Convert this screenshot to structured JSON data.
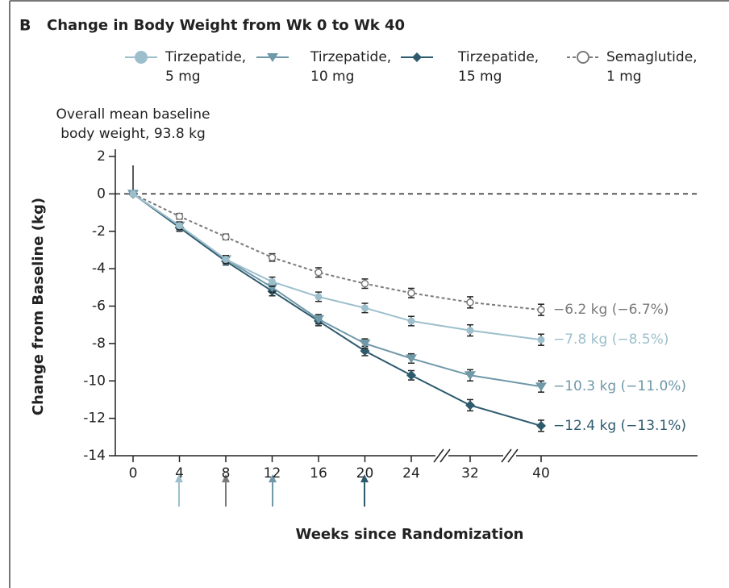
{
  "chart_data": {
    "type": "line",
    "panel": "B",
    "title": "Change in Body Weight from Wk 0 to Wk 40",
    "annotation": "Overall mean baseline body weight, 93.8 kg",
    "xlabel": "Weeks since Randomization",
    "ylabel": "Change from Baseline (kg)",
    "categories": [
      "0",
      "4",
      "8",
      "12",
      "16",
      "20",
      "24",
      "32",
      "40"
    ],
    "ylim": [
      -14,
      2
    ],
    "yticks": [
      -14,
      -12,
      -10,
      -8,
      -6,
      -4,
      -2,
      0,
      2
    ],
    "series": [
      {
        "name": "Tirzepatide, 5 mg",
        "color": "#9dbfcc",
        "marker": "circle",
        "values": [
          0,
          -1.7,
          -3.5,
          -4.7,
          -5.5,
          -6.1,
          -6.8,
          -7.3,
          -7.8
        ],
        "errors": [
          null,
          0.2,
          0.2,
          0.25,
          0.25,
          0.25,
          0.25,
          0.3,
          0.3
        ],
        "value_labels": [
          null,
          null,
          null,
          null,
          null,
          null,
          null,
          null,
          "−7.8 kg (−8.5%)"
        ]
      },
      {
        "name": "Tirzepatide, 10 mg",
        "color": "#6f98a8",
        "marker": "triangle",
        "values": [
          0,
          -1.7,
          -3.5,
          -5.0,
          -6.7,
          -8.0,
          -8.8,
          -9.7,
          -10.3
        ],
        "errors": [
          null,
          0.2,
          0.2,
          0.25,
          0.25,
          0.25,
          0.25,
          0.3,
          0.3
        ],
        "value_labels": [
          null,
          null,
          null,
          null,
          null,
          null,
          null,
          null,
          "−10.3 kg (−11.0%)"
        ]
      },
      {
        "name": "Tirzepatide, 15 mg",
        "color": "#2e5a6e",
        "marker": "diamond",
        "values": [
          0,
          -1.8,
          -3.6,
          -5.2,
          -6.8,
          -8.4,
          -9.7,
          -11.3,
          -12.4
        ],
        "errors": [
          null,
          0.2,
          0.2,
          0.25,
          0.25,
          0.25,
          0.25,
          0.3,
          0.3
        ],
        "value_labels": [
          null,
          null,
          null,
          null,
          null,
          null,
          null,
          null,
          "−12.4 kg (−13.1%)"
        ]
      },
      {
        "name": "Semaglutide, 1 mg",
        "color": "#7a7a7a",
        "marker": "open-circle",
        "dashed": true,
        "values": [
          0,
          -1.2,
          -2.3,
          -3.4,
          -4.2,
          -4.8,
          -5.3,
          -5.8,
          -6.2
        ],
        "errors": [
          null,
          0.15,
          0.15,
          0.2,
          0.25,
          0.25,
          0.25,
          0.3,
          0.3
        ],
        "value_labels": [
          null,
          null,
          null,
          null,
          null,
          null,
          null,
          null,
          "−6.2 kg (−6.7%)"
        ]
      }
    ]
  }
}
